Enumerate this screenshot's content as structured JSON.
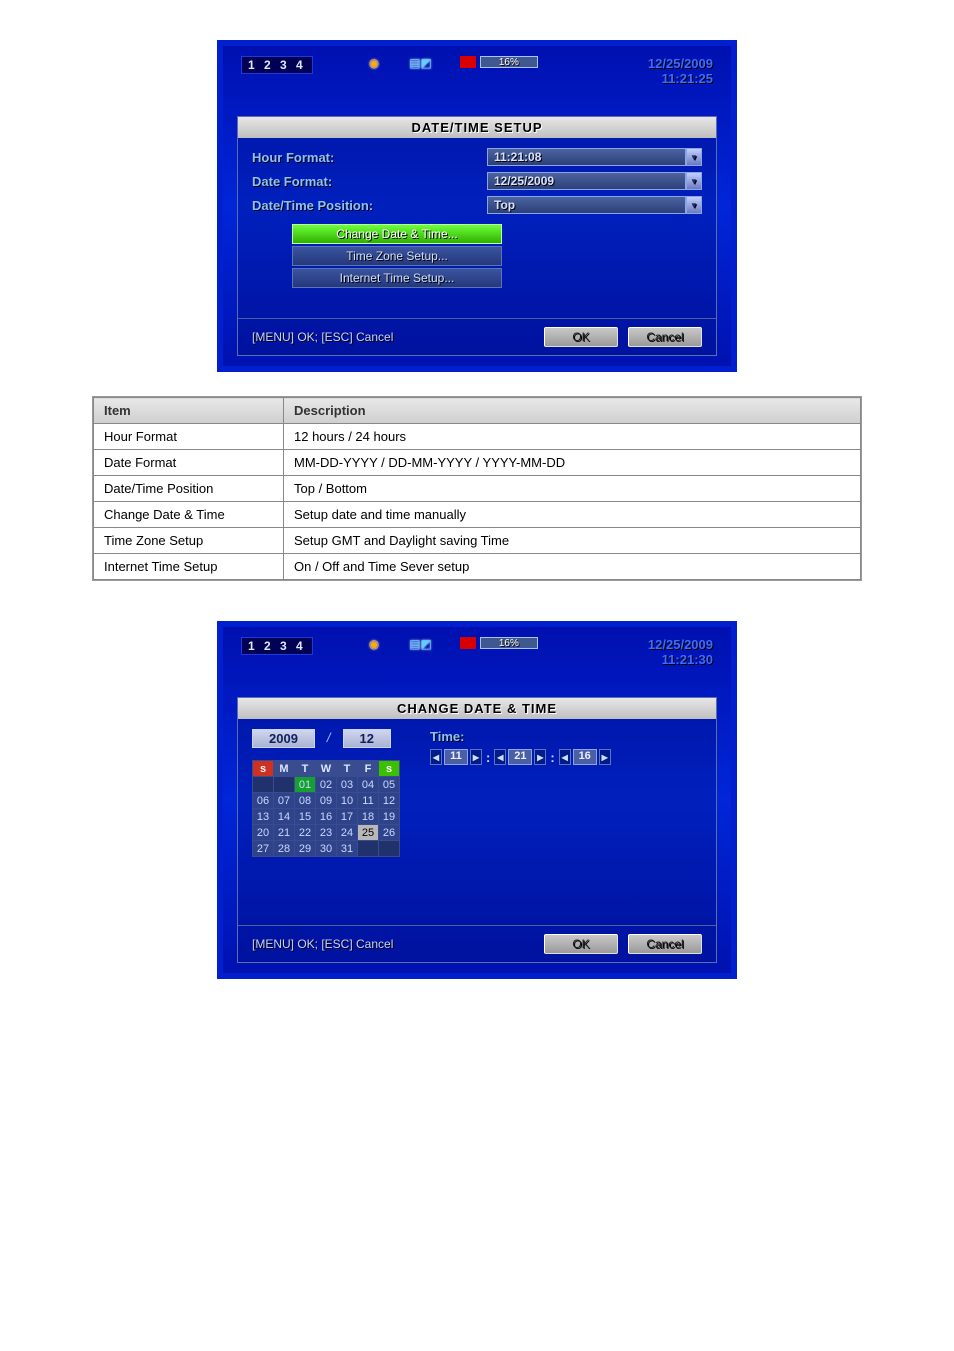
{
  "screenshot1": {
    "status_channels": "1 2 3 4",
    "hdd_percent": "16%",
    "date": "12/25/2009",
    "time": "11:21:25",
    "title": "DATE/TIME SETUP",
    "label_hour": "Hour Format:",
    "label_date": "Date Format:",
    "label_pos": "Date/Time Position:",
    "val_hour": "11:21:08",
    "val_date": "12/25/2009",
    "val_pos": "Top",
    "action_change": "Change Date & Time...",
    "action_tz": "Time Zone Setup...",
    "action_inet": "Internet Time Setup...",
    "footer_hint": "[MENU] OK; [ESC] Cancel",
    "btn_ok": "OK",
    "btn_cancel": "Cancel"
  },
  "table": {
    "headers": [
      "Item",
      "Description"
    ],
    "rows": [
      [
        "Hour Format",
        "12 hours / 24 hours"
      ],
      [
        "Date Format",
        "MM-DD-YYYY / DD-MM-YYYY / YYYY-MM-DD"
      ],
      [
        "Date/Time Position",
        "Top / Bottom"
      ],
      [
        "Change Date & Time",
        "Setup date and time manually"
      ],
      [
        "Time Zone Setup",
        "Setup GMT and Daylight saving Time"
      ],
      [
        "Internet Time Setup",
        "On / Off and Time Sever setup"
      ]
    ]
  },
  "screenshot2": {
    "status_channels": "1 2 3 4",
    "hdd_percent": "16%",
    "date": "12/25/2009",
    "time": "11:21:30",
    "title": "CHANGE DATE & TIME",
    "year": "2009",
    "month": "12",
    "dow": [
      "S",
      "M",
      "T",
      "W",
      "T",
      "F",
      "S"
    ],
    "grid": [
      [
        "",
        "",
        "01",
        "02",
        "03",
        "04",
        "05"
      ],
      [
        "06",
        "07",
        "08",
        "09",
        "10",
        "11",
        "12"
      ],
      [
        "13",
        "14",
        "15",
        "16",
        "17",
        "18",
        "19"
      ],
      [
        "20",
        "21",
        "22",
        "23",
        "24",
        "25",
        "26"
      ],
      [
        "27",
        "28",
        "29",
        "30",
        "31",
        "",
        ""
      ]
    ],
    "selected_day": "01",
    "today_day": "25",
    "time_label": "Time:",
    "hh": "11",
    "mm": "21",
    "ss": "16",
    "footer_hint": "[MENU] OK; [ESC] Cancel",
    "btn_ok": "OK",
    "btn_cancel": "Cancel"
  }
}
